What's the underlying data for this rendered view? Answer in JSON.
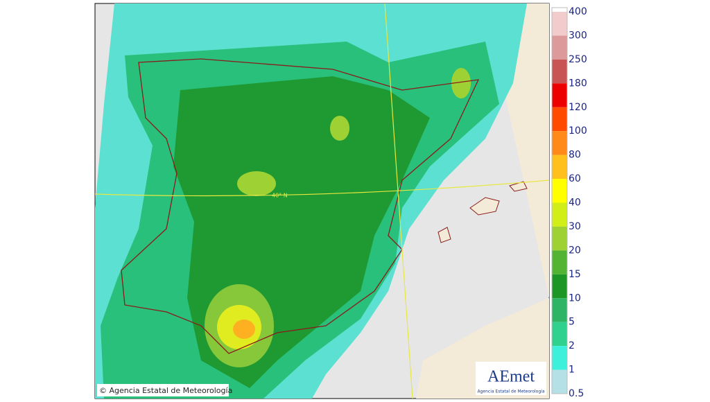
{
  "map": {
    "graticule_label": "40° N",
    "copyright": "© Agencia Estatal de Meteorología",
    "logo": {
      "name": "AEmet",
      "subtitle": "Agencia Estatal de Meteorología"
    }
  },
  "legend": [
    {
      "label": "400",
      "color": "#f2cccc"
    },
    {
      "label": "300",
      "color": "#dc9a9a"
    },
    {
      "label": "250",
      "color": "#c85454"
    },
    {
      "label": "180",
      "color": "#ec0000"
    },
    {
      "label": "120",
      "color": "#ff4a00"
    },
    {
      "label": "100",
      "color": "#ff8a1a"
    },
    {
      "label": "80",
      "color": "#ffc01e"
    },
    {
      "label": "60",
      "color": "#ffff00"
    },
    {
      "label": "40",
      "color": "#d2ee18"
    },
    {
      "label": "30",
      "color": "#9ed234"
    },
    {
      "label": "20",
      "color": "#52b432"
    },
    {
      "label": "15",
      "color": "#1e9626"
    },
    {
      "label": "10",
      "color": "#2eb464"
    },
    {
      "label": "5",
      "color": "#30d08e"
    },
    {
      "label": "2",
      "color": "#3cf0dc"
    },
    {
      "label": "1",
      "color": "#b4e0e6"
    },
    {
      "label": "0.5"
    }
  ]
}
